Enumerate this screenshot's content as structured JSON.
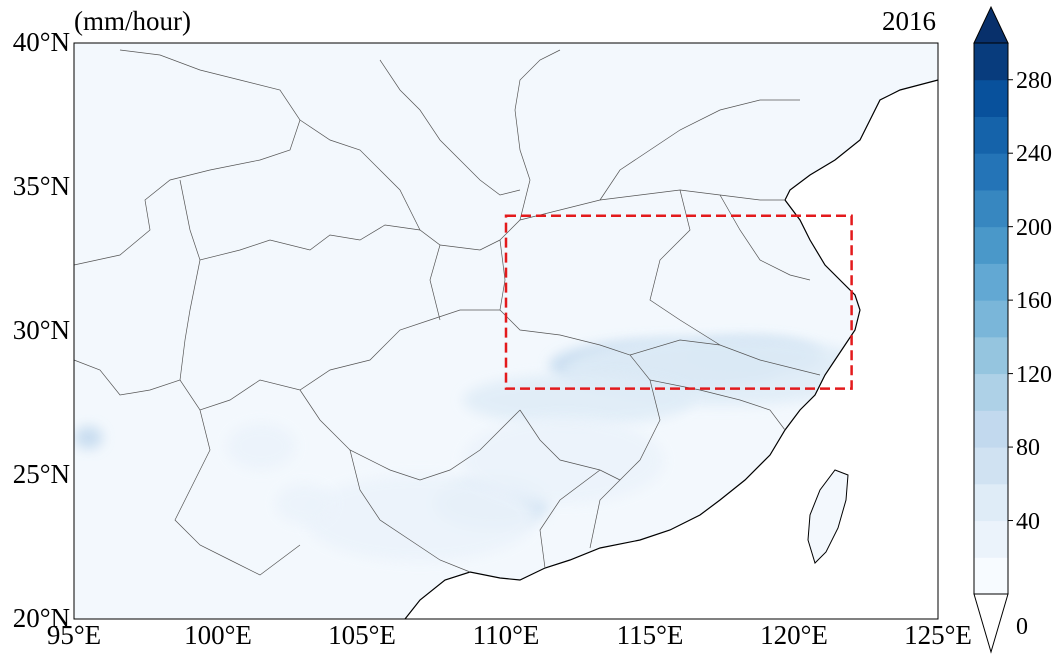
{
  "map": {
    "units_label": "(mm/hour)",
    "year_label": "2016",
    "lon_range": [
      95,
      125
    ],
    "lat_range": [
      20,
      40
    ],
    "x_ticks": [
      {
        "lon": 95,
        "label": "95°E"
      },
      {
        "lon": 100,
        "label": "100°E"
      },
      {
        "lon": 105,
        "label": "105°E"
      },
      {
        "lon": 110,
        "label": "110°E"
      },
      {
        "lon": 115,
        "label": "115°E"
      },
      {
        "lon": 120,
        "label": "120°E"
      },
      {
        "lon": 125,
        "label": "125°E"
      }
    ],
    "y_ticks": [
      {
        "lat": 20,
        "label": "20°N"
      },
      {
        "lat": 25,
        "label": "25°N"
      },
      {
        "lat": 30,
        "label": "30°N"
      },
      {
        "lat": 35,
        "label": "35°N"
      },
      {
        "lat": 40,
        "label": "40°N"
      }
    ],
    "highlight_box": {
      "lon_min": 110,
      "lon_max": 122,
      "lat_min": 28,
      "lat_max": 34,
      "color": "#e31a1c"
    }
  },
  "colorbar": {
    "min": 0,
    "max": 300,
    "step": 20,
    "ticks": [
      {
        "value": 0,
        "label": "0"
      },
      {
        "value": 40,
        "label": "40"
      },
      {
        "value": 80,
        "label": "80"
      },
      {
        "value": 120,
        "label": "120"
      },
      {
        "value": 160,
        "label": "160"
      },
      {
        "value": 200,
        "label": "200"
      },
      {
        "value": 240,
        "label": "240"
      },
      {
        "value": 280,
        "label": "280"
      }
    ],
    "colors": [
      "#f7fbff",
      "#ebf3fb",
      "#dfecf7",
      "#d0e2f2",
      "#c2d9ee",
      "#aed1e7",
      "#95c5df",
      "#7ab6d9",
      "#62a8d3",
      "#4a98c9",
      "#3787c0",
      "#2474b7",
      "#1563aa",
      "#08519c",
      "#083c7d"
    ],
    "over_color": "#08306b",
    "under_color": "#ffffff"
  },
  "precip_blobs": [
    {
      "lon": 115.5,
      "lat": 28.8,
      "rlon": 4.0,
      "rlat": 0.9,
      "level": 4
    },
    {
      "lon": 118.5,
      "lat": 29.1,
      "rlon": 2.5,
      "rlat": 0.7,
      "level": 4
    },
    {
      "lon": 117.5,
      "lat": 28.6,
      "rlon": 5.5,
      "rlat": 1.2,
      "level": 2
    },
    {
      "lon": 112.5,
      "lat": 27.6,
      "rlon": 4.0,
      "rlat": 0.9,
      "level": 2
    },
    {
      "lon": 109.5,
      "lat": 24.0,
      "rlon": 2.0,
      "rlat": 0.9,
      "level": 3
    },
    {
      "lon": 107.0,
      "lat": 23.5,
      "rlon": 4.0,
      "rlat": 1.5,
      "level": 1
    },
    {
      "lon": 95.5,
      "lat": 26.3,
      "rlon": 0.5,
      "rlat": 0.4,
      "level": 4
    },
    {
      "lon": 112.0,
      "lat": 25.5,
      "rlon": 3.5,
      "rlat": 1.5,
      "level": 1
    },
    {
      "lon": 101.5,
      "lat": 26.0,
      "rlon": 1.2,
      "rlat": 0.8,
      "level": 1
    },
    {
      "lon": 103.0,
      "lat": 24.0,
      "rlon": 1.0,
      "rlat": 0.7,
      "level": 1
    }
  ]
}
